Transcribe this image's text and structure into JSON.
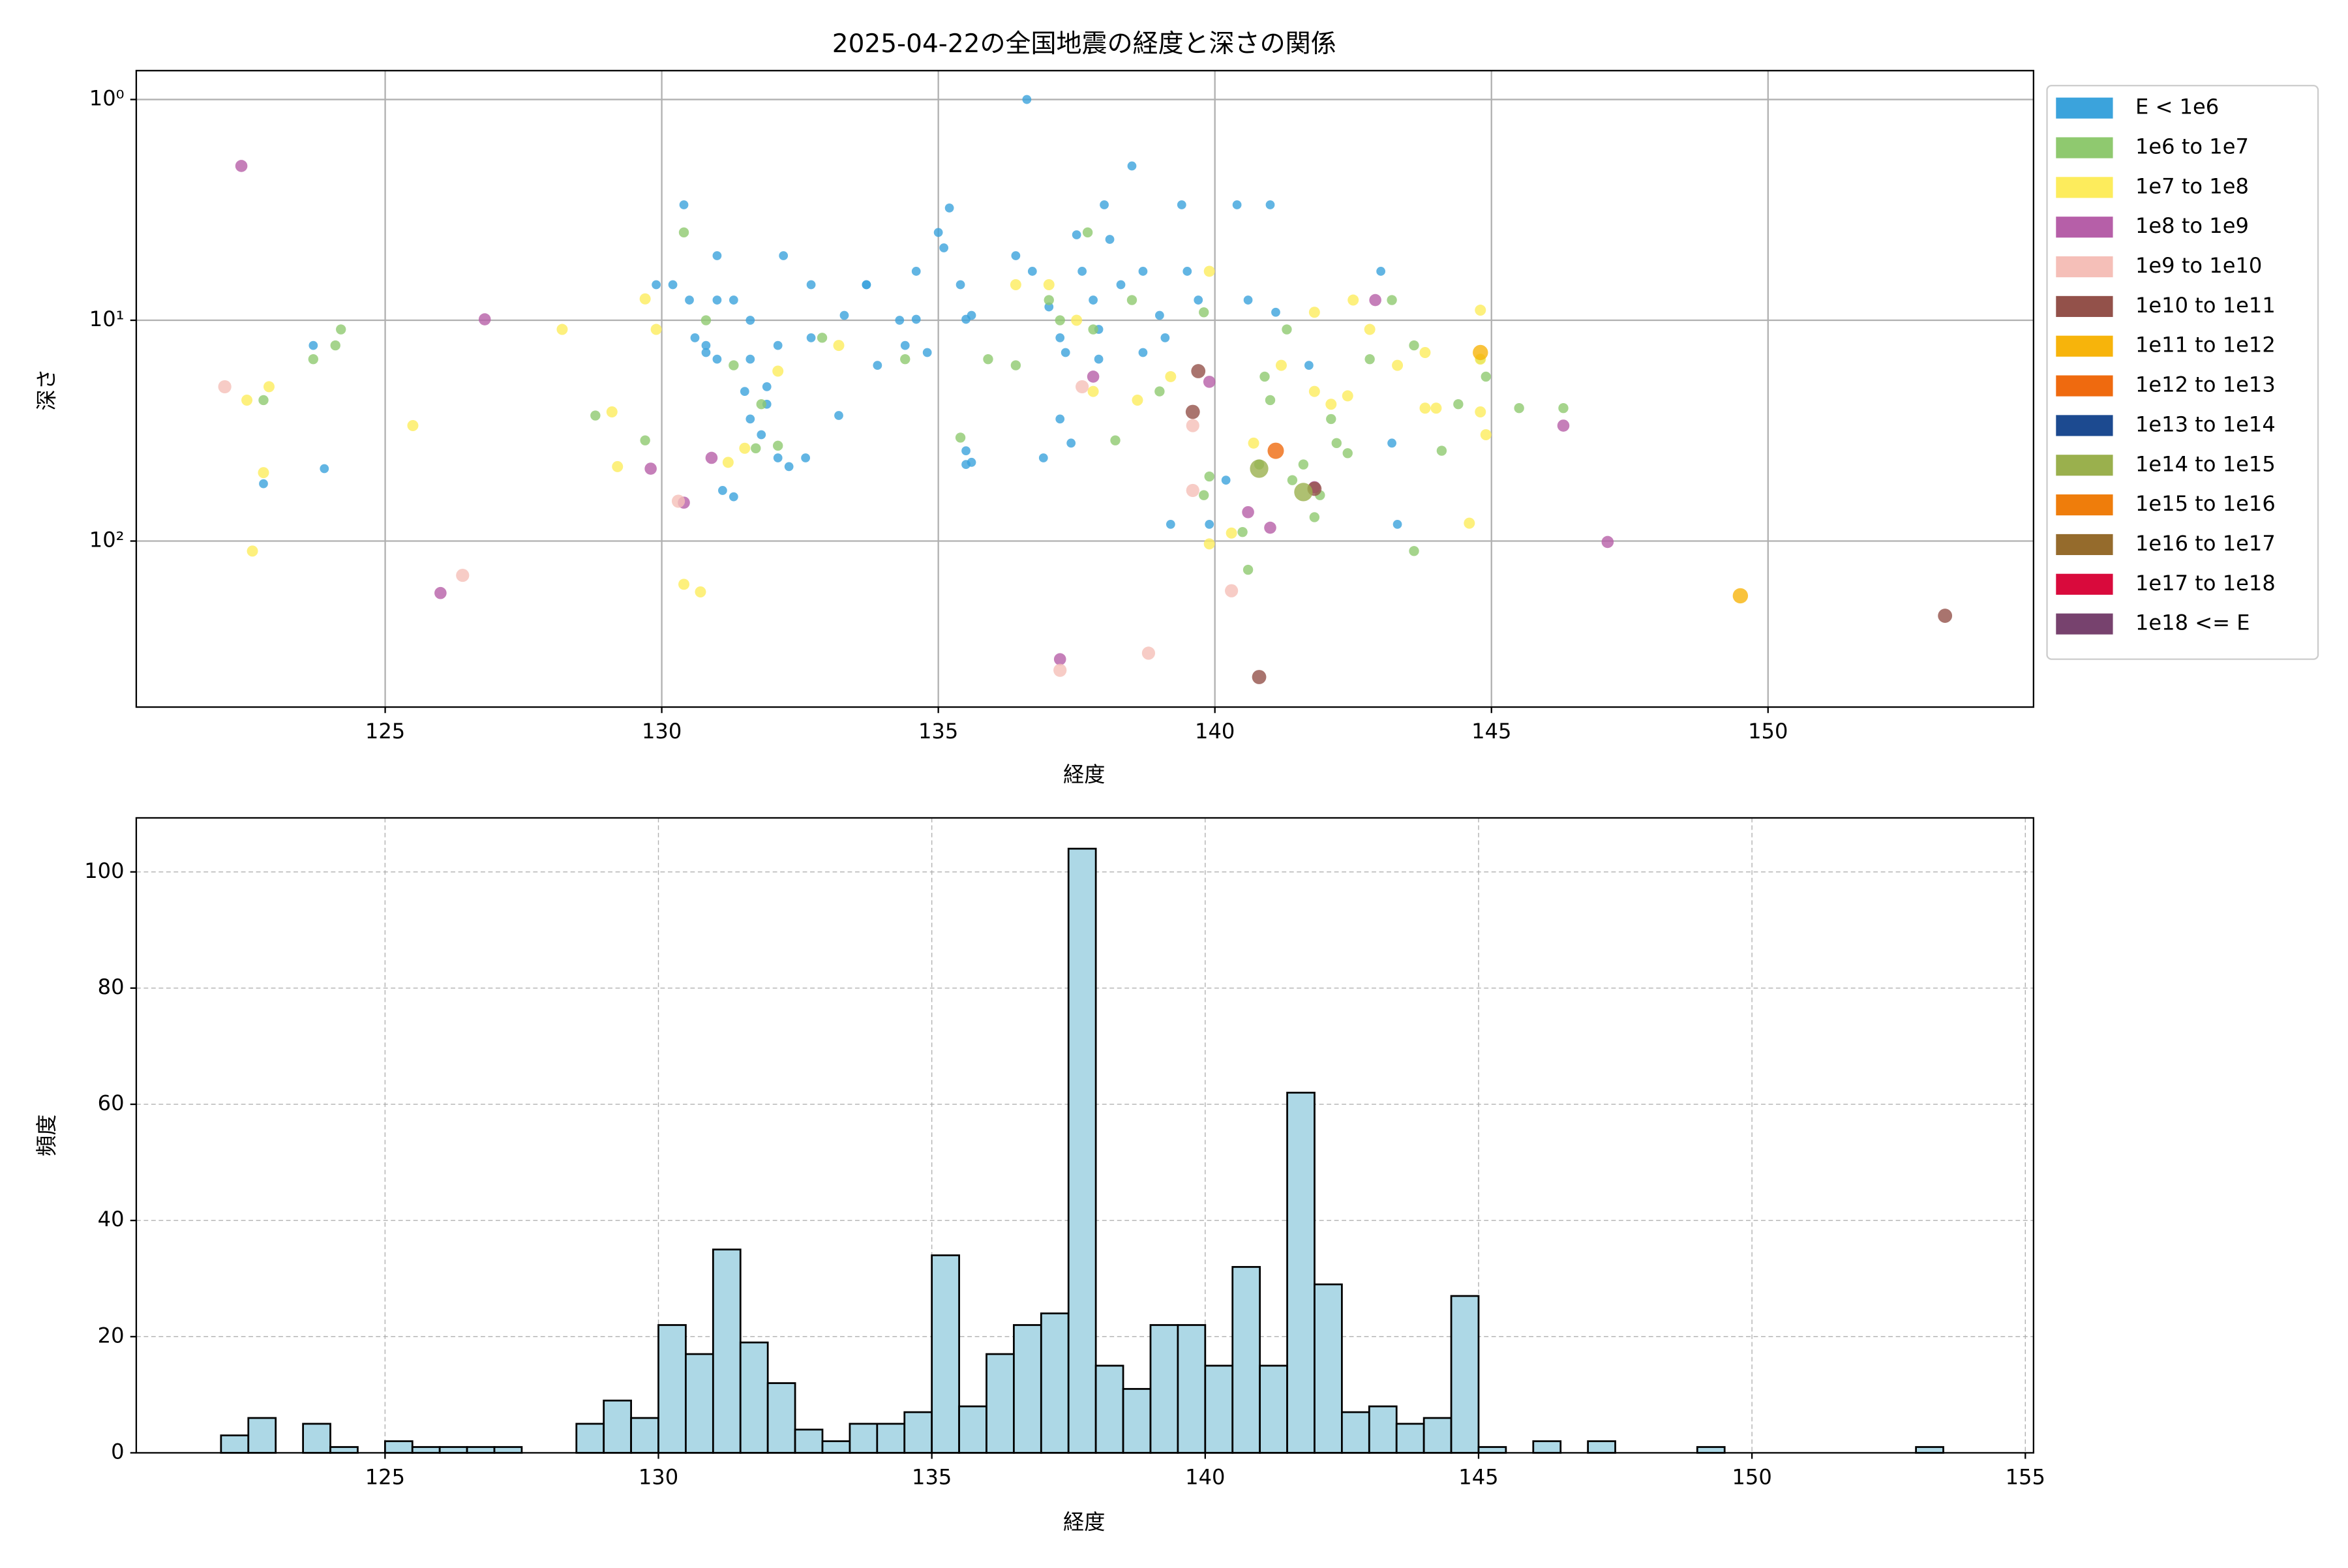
{
  "chart_data": [
    {
      "type": "scatter",
      "title": "2025-04-22の全国地震の経度と深さの関係",
      "x_label": "経度",
      "y_label": "深さ",
      "xlim": [
        120.5,
        154.8
      ],
      "ylim": [
        0.74,
        565
      ],
      "y_scale": "log",
      "y_inverted": true,
      "xticks": [
        125,
        130,
        135,
        140,
        145,
        150
      ],
      "yticks": [
        {
          "value": 1,
          "label": "10⁰"
        },
        {
          "value": 10,
          "label": "10¹"
        },
        {
          "value": 100,
          "label": "10²"
        }
      ],
      "grid": true,
      "legend": "outside right",
      "series": [
        {
          "name": "E < 1e6",
          "color": "#3ba3dc",
          "x": [
            136.6,
            130.4,
            129.9,
            130.2,
            130.5,
            131.0,
            131.3,
            131.6,
            132.1,
            132.7,
            130.8,
            130.8,
            130.6,
            131.0,
            131.5,
            131.6,
            131.8,
            131.1,
            131.3,
            132.1,
            132.3,
            132.6,
            132.2,
            131.0,
            131.6,
            131.9,
            131.9,
            133.3,
            133.7,
            134.3,
            134.4,
            134.6,
            135.0,
            135.2,
            135.1,
            135.4,
            135.5,
            135.6,
            134.8,
            134.6,
            135.5,
            135.6,
            135.5,
            136.4,
            136.7,
            137.0,
            137.2,
            137.3,
            137.5,
            137.6,
            137.8,
            137.9,
            137.9,
            138.0,
            138.1,
            138.3,
            138.5,
            138.7,
            139.0,
            139.4,
            139.5,
            139.7,
            139.1,
            138.7,
            140.4,
            140.6,
            141.0,
            141.1,
            140.2,
            139.9,
            139.2,
            141.7,
            143.0,
            143.2,
            143.3,
            137.2,
            137.4,
            136.9,
            133.9,
            133.2,
            133.7,
            123.9,
            122.8,
            123.7,
            132.7
          ],
          "values": [
            1.0,
            3.0,
            6.9,
            6.9,
            8.1,
            5.1,
            8.1,
            10,
            13,
            12,
            13,
            14,
            12,
            15,
            21,
            28,
            33,
            59,
            63,
            42,
            46,
            42,
            5.1,
            8.1,
            15,
            20,
            24,
            9.5,
            6.9,
            10,
            13,
            6.0,
            4.0,
            3.1,
            4.7,
            6.9,
            9.9,
            9.5,
            14,
            9.9,
            39,
            44,
            45,
            5.1,
            6.0,
            8.7,
            12,
            14,
            4.1,
            6.0,
            8.1,
            11,
            15,
            3.0,
            4.3,
            6.9,
            2.0,
            6.0,
            9.5,
            3.0,
            6.0,
            8.1,
            12,
            14,
            3.0,
            8.1,
            3.0,
            9.2,
            53,
            84,
            84,
            16,
            6.0,
            36,
            84,
            28,
            36,
            42,
            16,
            27,
            6.9,
            47,
            55,
            13,
            6.9
          ]
        },
        {
          "name": "1e6 to 1e7",
          "color": "#8fc96f",
          "x": [
            124.1,
            124.2,
            123.7,
            122.8,
            128.8,
            129.7,
            130.4,
            130.8,
            131.3,
            131.8,
            131.7,
            132.1,
            132.9,
            134.4,
            135.4,
            135.9,
            136.4,
            137.0,
            137.2,
            137.7,
            137.8,
            138.5,
            138.2,
            139.0,
            139.8,
            139.9,
            139.8,
            140.5,
            140.6,
            140.9,
            141.0,
            141.3,
            141.6,
            141.9,
            141.8,
            142.1,
            142.4,
            142.8,
            143.2,
            143.6,
            143.6,
            144.1,
            144.4,
            144.8,
            144.9,
            145.5,
            146.3,
            142.2,
            140.8,
            141.4
          ],
          "values": [
            13,
            11,
            15,
            23,
            27,
            35,
            4.0,
            10,
            16,
            24,
            38,
            37,
            12,
            15,
            34,
            15,
            16,
            8.1,
            10,
            4.0,
            11,
            8.1,
            35,
            21,
            9.2,
            51,
            62,
            91,
            135,
            18,
            23,
            11,
            45,
            62,
            78,
            28,
            40,
            15,
            8.1,
            13,
            111,
            39,
            24,
            15,
            18,
            25,
            25,
            36,
            45,
            53
          ]
        },
        {
          "name": "1e7 to 1e8",
          "color": "#fdec5c",
          "x": [
            122.5,
            122.8,
            122.9,
            122.6,
            125.5,
            128.2,
            129.1,
            129.2,
            129.7,
            129.9,
            130.4,
            130.7,
            131.2,
            131.5,
            132.1,
            133.2,
            136.4,
            137.0,
            137.5,
            137.8,
            138.6,
            139.2,
            139.9,
            139.9,
            140.3,
            140.7,
            141.2,
            141.8,
            142.1,
            142.4,
            142.5,
            142.8,
            143.3,
            143.8,
            143.8,
            144.0,
            144.6,
            144.8,
            144.8,
            144.8,
            144.9,
            141.8
          ],
          "values": [
            23,
            49,
            20,
            111,
            30,
            11,
            26,
            46,
            8.0,
            11,
            157,
            170,
            44,
            38,
            17,
            13,
            6.9,
            6.9,
            10,
            21,
            23,
            18,
            6.0,
            103,
            92,
            36,
            16,
            21,
            24,
            22,
            8.1,
            11,
            16,
            14,
            25,
            25,
            83,
            9.0,
            15,
            26,
            33,
            9.2
          ]
        },
        {
          "name": "1e8 to 1e9",
          "color": "#b65fa8",
          "x": [
            122.4,
            126.0,
            126.8,
            129.8,
            130.4,
            130.9,
            137.2,
            137.8,
            139.9,
            140.6,
            141.0,
            141.8,
            142.9,
            146.3,
            147.1
          ],
          "values": [
            2.0,
            172,
            9.9,
            47,
            67,
            42,
            343,
            18,
            19,
            74,
            87,
            57,
            8.1,
            30,
            101
          ]
        },
        {
          "name": "1e9 to 1e10",
          "color": "#f5bfb8",
          "x": [
            122.1,
            126.4,
            130.3,
            137.6,
            138.8,
            139.6,
            139.6,
            140.3,
            137.2
          ],
          "values": [
            20,
            143,
            66,
            20,
            322,
            30,
            59,
            168,
            385
          ]
        },
        {
          "name": "1e10 to 1e11",
          "color": "#93514a",
          "x": [
            139.7,
            139.6,
            140.8,
            153.2,
            141.8
          ],
          "values": [
            17,
            26,
            413,
            218,
            58
          ]
        },
        {
          "name": "1e11 to 1e12",
          "color": "#f7b40b",
          "x": [
            149.5,
            144.8
          ],
          "values": [
            177,
            14
          ]
        },
        {
          "name": "1e12 to 1e13",
          "color": "#ef6a0f",
          "x": [
            141.1
          ],
          "values": [
            39
          ]
        },
        {
          "name": "1e13 to 1e14",
          "color": "#1c4a90",
          "x": [],
          "values": []
        },
        {
          "name": "1e14 to 1e15",
          "color": "#9ab04d",
          "x": [
            140.8,
            141.6
          ],
          "values": [
            47,
            60
          ]
        },
        {
          "name": "1e15 to 1e16",
          "color": "#ef7d0b",
          "x": [],
          "values": []
        },
        {
          "name": "1e16 to 1e17",
          "color": "#956b2c",
          "x": [],
          "values": []
        },
        {
          "name": "1e17 to 1e18",
          "color": "#d90a3c",
          "x": [],
          "values": []
        },
        {
          "name": "1e18 <= E",
          "color": "#77426e",
          "x": [],
          "values": []
        }
      ]
    },
    {
      "type": "histogram",
      "x_label": "経度",
      "y_label": "頻度",
      "color": "#add8e6",
      "edge_color": "#000000",
      "xlim": [
        120.45,
        155.15
      ],
      "ylim": [
        0,
        109.3
      ],
      "xticks": [
        125,
        130,
        135,
        140,
        145,
        150,
        155
      ],
      "yticks": [
        0,
        20,
        40,
        60,
        80,
        100
      ],
      "grid": true,
      "grid_style": "dashed",
      "bins": [
        122,
        122.5,
        123,
        123.5,
        124,
        124.5,
        125,
        125.5,
        126,
        126.5,
        127,
        127.5,
        128,
        128.5,
        129,
        129.5,
        130,
        130.5,
        131,
        131.5,
        132,
        132.5,
        133,
        133.5,
        134,
        134.5,
        135,
        135.5,
        136,
        136.5,
        137,
        137.5,
        138,
        138.5,
        139,
        139.5,
        140,
        140.5,
        141,
        141.5,
        142,
        142.5,
        143,
        143.5,
        144,
        144.5,
        145,
        145.5,
        146,
        146.5,
        147,
        147.5,
        148,
        148.5,
        149,
        149.5,
        150,
        150.5,
        151,
        151.5,
        152,
        152.5,
        153,
        153.5
      ],
      "values": [
        3,
        6,
        0,
        5,
        1,
        0,
        2,
        1,
        1,
        1,
        1,
        0,
        0,
        5,
        9,
        6,
        22,
        17,
        35,
        19,
        12,
        4,
        2,
        5,
        5,
        7,
        34,
        8,
        17,
        22,
        24,
        104,
        15,
        11,
        22,
        22,
        15,
        32,
        15,
        62,
        29,
        7,
        8,
        5,
        6,
        27,
        1,
        0,
        2,
        0,
        2,
        0,
        0,
        0,
        1,
        0,
        0,
        0,
        0,
        0,
        0,
        0,
        1
      ]
    }
  ]
}
